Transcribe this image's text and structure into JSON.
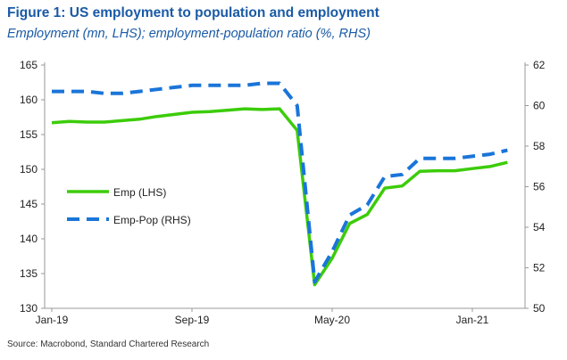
{
  "chart_data": {
    "type": "line",
    "title": "Figure 1: US employment to population and employment",
    "subtitle": "Employment (mn, LHS); employment-population ratio (%, RHS)",
    "x": [
      "Jan-19",
      "Feb-19",
      "Mar-19",
      "Apr-19",
      "May-19",
      "Jun-19",
      "Jul-19",
      "Aug-19",
      "Sep-19",
      "Oct-19",
      "Nov-19",
      "Dec-19",
      "Jan-20",
      "Feb-20",
      "Mar-20",
      "Apr-20",
      "May-20",
      "Jun-20",
      "Jul-20",
      "Aug-20",
      "Sep-20",
      "Oct-20",
      "Nov-20",
      "Dec-20",
      "Jan-21",
      "Feb-21",
      "Mar-21"
    ],
    "xticks": [
      "Jan-19",
      "Sep-19",
      "May-20",
      "Jan-21"
    ],
    "xtick_index": [
      0,
      8,
      16,
      24
    ],
    "left_axis": {
      "ylim": [
        130,
        165
      ],
      "ticks": [
        130,
        135,
        140,
        145,
        150,
        155,
        160,
        165
      ]
    },
    "right_axis": {
      "ylim": [
        50,
        62
      ],
      "ticks": [
        50,
        52,
        54,
        56,
        58,
        60,
        62
      ]
    },
    "series": [
      {
        "name": "Emp (LHS)",
        "axis": "left",
        "color": "#3ccc0a",
        "style": "solid",
        "values": [
          156.7,
          156.9,
          156.8,
          156.8,
          157.0,
          157.2,
          157.6,
          157.9,
          158.2,
          158.3,
          158.5,
          158.7,
          158.6,
          158.7,
          155.6,
          133.4,
          137.2,
          142.2,
          143.5,
          147.3,
          147.6,
          149.7,
          149.8,
          149.8,
          150.1,
          150.4,
          151.0
        ]
      },
      {
        "name": "Emp-Pop (RHS)",
        "axis": "right",
        "color": "#1a75d9",
        "style": "dashed",
        "values": [
          60.7,
          60.7,
          60.7,
          60.6,
          60.6,
          60.7,
          60.8,
          60.9,
          61.0,
          61.0,
          61.0,
          61.0,
          61.1,
          61.1,
          60.0,
          51.3,
          52.8,
          54.6,
          55.1,
          56.5,
          56.6,
          57.4,
          57.4,
          57.4,
          57.5,
          57.6,
          57.8
        ]
      }
    ],
    "legend": "left-middle",
    "grid": false
  },
  "source": "Source: Macrobond, Standard Chartered Research"
}
